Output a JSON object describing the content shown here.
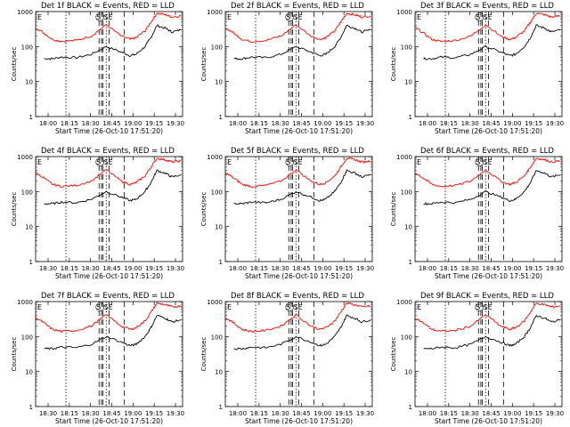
{
  "figure": {
    "start_time_label": "Start Time (26-Oct-10 17:51:20)",
    "ylabel": "Counts/sec",
    "ytick_labels": [
      "1",
      "10",
      "100",
      "1000"
    ],
    "xtick_labels": [
      "18:00",
      "18:15",
      "18:30",
      "18:45",
      "19:00",
      "19:15",
      "19:30"
    ],
    "xtick_labels_alt": [
      "18:30",
      "18:15",
      "18:30",
      "18:45",
      "19:00",
      "19:15",
      "19:30"
    ],
    "marker_e": "E",
    "marker_s": "S",
    "marker_se": "SE",
    "colors": {
      "events": "#000000",
      "lld": "#ff0000",
      "axis": "#000000"
    }
  },
  "chart_data": [
    {
      "type": "line",
      "title": "Det 1f BLACK = Events, RED = LLD",
      "xlabel": "Start Time (26-Oct-10 17:51:20)",
      "ylabel": "Counts/sec",
      "yscale": "log",
      "ylim": [
        1,
        1000
      ],
      "xlim_minutes": [
        -8.67,
        40.6
      ],
      "xtick_labels": [
        "18:00",
        "18:15",
        "18:30",
        "18:45",
        "19:00",
        "19:15",
        "19:30"
      ],
      "dotted_markers_minutes": [
        1.5,
        15.0
      ],
      "dashed_markers_minutes": [
        12.6,
        13.4,
        13.9,
        16.0,
        21.0
      ],
      "series": [
        {
          "name": "Events",
          "color": "#000000",
          "x_minutes": [
            -5.8,
            -3,
            0,
            5,
            10,
            15,
            20,
            23,
            25,
            28,
            30,
            32,
            35,
            37,
            40
          ],
          "y": [
            45,
            45,
            50,
            48,
            60,
            100,
            70,
            55,
            60,
            100,
            180,
            400,
            330,
            260,
            300
          ]
        },
        {
          "name": "LLD",
          "color": "#ff0000",
          "x_minutes": [
            -8.67,
            -5.8,
            -3,
            0,
            5,
            10,
            15,
            20,
            23,
            25,
            28,
            30,
            32,
            35,
            37,
            40
          ],
          "y": [
            350,
            240,
            160,
            140,
            150,
            200,
            420,
            200,
            160,
            180,
            280,
            500,
            900,
            800,
            700,
            750
          ]
        }
      ]
    },
    {
      "type": "line",
      "title": "Det 2f BLACK = Events, RED = LLD",
      "xlabel": "Start Time (26-Oct-10 17:51:20)",
      "ylabel": "Counts/sec",
      "yscale": "log",
      "ylim": [
        1,
        1000
      ],
      "xlim_minutes": [
        -8.67,
        40.6
      ],
      "xtick_labels": [
        "18:00",
        "18:15",
        "18:30",
        "18:45",
        "19:00",
        "19:15",
        "19:30"
      ],
      "dotted_markers_minutes": [
        1.5,
        15.0
      ],
      "dashed_markers_minutes": [
        12.6,
        13.4,
        13.9,
        16.0,
        21.0
      ],
      "series": [
        {
          "name": "Events",
          "color": "#000000",
          "x_minutes": [
            -5.8,
            -3,
            0,
            5,
            10,
            15,
            20,
            23,
            25,
            28,
            30,
            32,
            35,
            37,
            40
          ],
          "y": [
            45,
            45,
            50,
            48,
            60,
            100,
            70,
            55,
            60,
            100,
            180,
            400,
            330,
            260,
            300
          ]
        },
        {
          "name": "LLD",
          "color": "#ff0000",
          "x_minutes": [
            -8.67,
            -5.8,
            -3,
            0,
            5,
            10,
            15,
            20,
            23,
            25,
            28,
            30,
            32,
            35,
            37,
            40
          ],
          "y": [
            350,
            240,
            160,
            140,
            150,
            200,
            420,
            200,
            160,
            180,
            280,
            500,
            900,
            800,
            700,
            750
          ]
        }
      ]
    },
    {
      "type": "line",
      "title": "Det 3f BLACK = Events, RED = LLD",
      "xlabel": "Start Time (26-Oct-10 17:51:20)",
      "ylabel": "Counts/sec",
      "yscale": "log",
      "ylim": [
        1,
        1000
      ],
      "xlim_minutes": [
        -8.67,
        40.6
      ],
      "xtick_labels": [
        "18:00",
        "18:15",
        "18:30",
        "18:45",
        "19:00",
        "19:15",
        "19:30"
      ],
      "dotted_markers_minutes": [
        1.5,
        15.0
      ],
      "dashed_markers_minutes": [
        12.6,
        13.4,
        13.9,
        16.0,
        21.0
      ],
      "series": [
        {
          "name": "Events",
          "color": "#000000",
          "x_minutes": [
            -5.8,
            -3,
            0,
            5,
            10,
            15,
            20,
            23,
            25,
            28,
            30,
            32,
            35,
            37,
            40
          ],
          "y": [
            45,
            45,
            50,
            48,
            60,
            100,
            70,
            55,
            60,
            100,
            180,
            400,
            330,
            260,
            300
          ]
        },
        {
          "name": "LLD",
          "color": "#ff0000",
          "x_minutes": [
            -8.67,
            -5.8,
            -3,
            0,
            5,
            10,
            15,
            20,
            23,
            25,
            28,
            30,
            32,
            35,
            37,
            40
          ],
          "y": [
            350,
            240,
            160,
            140,
            150,
            200,
            420,
            200,
            160,
            180,
            280,
            500,
            900,
            800,
            700,
            750
          ]
        }
      ]
    },
    {
      "type": "line",
      "title": "Det 4f BLACK = Events, RED = LLD",
      "xlabel": "Start Time (26-Oct-10 17:51:20)",
      "ylabel": "Counts/sec",
      "yscale": "log",
      "ylim": [
        1,
        1000
      ],
      "xlim_minutes": [
        -8.67,
        40.6
      ],
      "xtick_labels": [
        "18:30",
        "18:15",
        "18:30",
        "18:45",
        "19:00",
        "19:15",
        "19:30"
      ],
      "dotted_markers_minutes": [
        1.5,
        15.0
      ],
      "dashed_markers_minutes": [
        12.6,
        13.4,
        13.9,
        16.0,
        21.0
      ],
      "series": [
        {
          "name": "Events",
          "color": "#000000",
          "x_minutes": [
            -5.8,
            -3,
            0,
            5,
            10,
            15,
            20,
            23,
            25,
            28,
            30,
            32,
            35,
            37,
            40
          ],
          "y": [
            45,
            45,
            50,
            48,
            60,
            100,
            70,
            55,
            60,
            100,
            180,
            400,
            330,
            260,
            300
          ]
        },
        {
          "name": "LLD",
          "color": "#ff0000",
          "x_minutes": [
            -8.67,
            -5.8,
            -3,
            0,
            5,
            10,
            15,
            20,
            23,
            25,
            28,
            30,
            32,
            35,
            37,
            40
          ],
          "y": [
            350,
            240,
            160,
            140,
            150,
            200,
            420,
            200,
            160,
            180,
            280,
            500,
            900,
            800,
            700,
            750
          ]
        }
      ]
    },
    {
      "type": "line",
      "title": "Det 5f BLACK = Events, RED = LLD",
      "xlabel": "Start Time (26-Oct-10 17:51:20)",
      "ylabel": "Counts/sec",
      "yscale": "log",
      "ylim": [
        1,
        1000
      ],
      "xlim_minutes": [
        -8.67,
        40.6
      ],
      "xtick_labels": [
        "18:00",
        "18:15",
        "18:30",
        "18:45",
        "19:00",
        "19:15",
        "19:30"
      ],
      "dotted_markers_minutes": [
        1.5,
        15.0
      ],
      "dashed_markers_minutes": [
        12.6,
        13.4,
        13.9,
        16.0,
        21.0
      ],
      "series": [
        {
          "name": "Events",
          "color": "#000000",
          "x_minutes": [
            -5.8,
            -3,
            0,
            5,
            10,
            15,
            20,
            23,
            25,
            28,
            30,
            32,
            35,
            37,
            40
          ],
          "y": [
            45,
            45,
            50,
            48,
            60,
            100,
            70,
            55,
            60,
            100,
            180,
            400,
            330,
            260,
            300
          ]
        },
        {
          "name": "LLD",
          "color": "#ff0000",
          "x_minutes": [
            -8.67,
            -5.8,
            -3,
            0,
            5,
            10,
            15,
            20,
            23,
            25,
            28,
            30,
            32,
            35,
            37,
            40
          ],
          "y": [
            350,
            240,
            160,
            140,
            150,
            200,
            420,
            200,
            160,
            180,
            280,
            500,
            900,
            800,
            700,
            750
          ]
        }
      ]
    },
    {
      "type": "line",
      "title": "Det 6f BLACK = Events, RED = LLD",
      "xlabel": "Start Time (26-Oct-10 17:51:20)",
      "ylabel": "Counts/sec",
      "yscale": "log",
      "ylim": [
        1,
        1000
      ],
      "xlim_minutes": [
        -8.67,
        40.6
      ],
      "xtick_labels": [
        "18:00",
        "18:15",
        "18:30",
        "18:45",
        "19:00",
        "19:15",
        "19:30"
      ],
      "dotted_markers_minutes": [
        1.5,
        15.0
      ],
      "dashed_markers_minutes": [
        12.6,
        13.4,
        13.9,
        16.0,
        21.0
      ],
      "series": [
        {
          "name": "Events",
          "color": "#000000",
          "x_minutes": [
            -5.8,
            -3,
            0,
            5,
            10,
            15,
            20,
            23,
            25,
            28,
            30,
            32,
            35,
            37,
            40
          ],
          "y": [
            45,
            45,
            50,
            48,
            60,
            100,
            70,
            55,
            60,
            100,
            180,
            400,
            330,
            260,
            300
          ]
        },
        {
          "name": "LLD",
          "color": "#ff0000",
          "x_minutes": [
            -8.67,
            -5.8,
            -3,
            0,
            5,
            10,
            15,
            20,
            23,
            25,
            28,
            30,
            32,
            35,
            37,
            40
          ],
          "y": [
            350,
            240,
            160,
            140,
            150,
            200,
            420,
            200,
            160,
            180,
            280,
            500,
            900,
            800,
            700,
            750
          ]
        }
      ]
    },
    {
      "type": "line",
      "title": "Det 7f BLACK = Events, RED = LLD",
      "xlabel": "Start Time (26-Oct-10 17:51:20)",
      "ylabel": "Counts/sec",
      "yscale": "log",
      "ylim": [
        1,
        1000
      ],
      "xlim_minutes": [
        -8.67,
        40.6
      ],
      "xtick_labels": [
        "18:30",
        "18:15",
        "18:30",
        "18:45",
        "19:00",
        "19:15",
        "19:30"
      ],
      "dotted_markers_minutes": [
        1.5,
        15.0
      ],
      "dashed_markers_minutes": [
        12.6,
        13.4,
        13.9,
        16.0,
        21.0
      ],
      "series": [
        {
          "name": "Events",
          "color": "#000000",
          "x_minutes": [
            -5.8,
            -3,
            0,
            5,
            10,
            15,
            20,
            23,
            25,
            28,
            30,
            32,
            35,
            37,
            40
          ],
          "y": [
            45,
            45,
            50,
            48,
            60,
            100,
            70,
            55,
            60,
            100,
            180,
            400,
            330,
            260,
            300
          ]
        },
        {
          "name": "LLD",
          "color": "#ff0000",
          "x_minutes": [
            -8.67,
            -5.8,
            -3,
            0,
            5,
            10,
            15,
            20,
            23,
            25,
            28,
            30,
            32,
            35,
            37,
            40
          ],
          "y": [
            350,
            240,
            160,
            140,
            150,
            200,
            420,
            200,
            160,
            180,
            280,
            500,
            900,
            800,
            700,
            750
          ]
        }
      ]
    },
    {
      "type": "line",
      "title": "Det 8f BLACK = Events, RED = LLD",
      "xlabel": "Start Time (26-Oct-10 17:51:20)",
      "ylabel": "Counts/sec",
      "yscale": "log",
      "ylim": [
        1,
        1000
      ],
      "xlim_minutes": [
        -8.67,
        40.6
      ],
      "xtick_labels": [
        "18:00",
        "18:15",
        "18:30",
        "18:45",
        "19:00",
        "19:15",
        "19:30"
      ],
      "dotted_markers_minutes": [
        1.5,
        15.0
      ],
      "dashed_markers_minutes": [
        12.6,
        13.4,
        13.9,
        16.0,
        21.0
      ],
      "series": [
        {
          "name": "Events",
          "color": "#000000",
          "x_minutes": [
            -5.8,
            -3,
            0,
            5,
            10,
            15,
            20,
            23,
            25,
            28,
            30,
            32,
            35,
            37,
            40
          ],
          "y": [
            45,
            45,
            50,
            48,
            60,
            100,
            70,
            55,
            60,
            100,
            180,
            400,
            330,
            260,
            300
          ]
        },
        {
          "name": "LLD",
          "color": "#ff0000",
          "x_minutes": [
            -8.67,
            -5.8,
            -3,
            0,
            5,
            10,
            15,
            20,
            23,
            25,
            28,
            30,
            32,
            35,
            37,
            40
          ],
          "y": [
            350,
            240,
            160,
            140,
            150,
            200,
            420,
            200,
            160,
            180,
            280,
            500,
            900,
            800,
            700,
            750
          ]
        }
      ]
    },
    {
      "type": "line",
      "title": "Det 9f BLACK = Events, RED = LLD",
      "xlabel": "Start Time (26-Oct-10 17:51:20)",
      "ylabel": "Counts/sec",
      "yscale": "log",
      "ylim": [
        1,
        1000
      ],
      "xlim_minutes": [
        -8.67,
        40.6
      ],
      "xtick_labels": [
        "18:00",
        "18:15",
        "18:30",
        "18:45",
        "19:00",
        "19:15",
        "19:30"
      ],
      "dotted_markers_minutes": [
        1.5,
        15.0
      ],
      "dashed_markers_minutes": [
        12.6,
        13.4,
        13.9,
        16.0,
        21.0
      ],
      "series": [
        {
          "name": "Events",
          "color": "#000000",
          "x_minutes": [
            -5.8,
            -3,
            0,
            5,
            10,
            15,
            20,
            23,
            25,
            28,
            30,
            32,
            35,
            37,
            40
          ],
          "y": [
            45,
            45,
            50,
            48,
            60,
            100,
            70,
            55,
            60,
            100,
            180,
            400,
            330,
            260,
            300
          ]
        },
        {
          "name": "LLD",
          "color": "#ff0000",
          "x_minutes": [
            -8.67,
            -5.8,
            -3,
            0,
            5,
            10,
            15,
            20,
            23,
            25,
            28,
            30,
            32,
            35,
            37,
            40
          ],
          "y": [
            350,
            240,
            160,
            140,
            150,
            200,
            420,
            200,
            160,
            180,
            280,
            500,
            900,
            800,
            700,
            750
          ]
        }
      ]
    }
  ]
}
